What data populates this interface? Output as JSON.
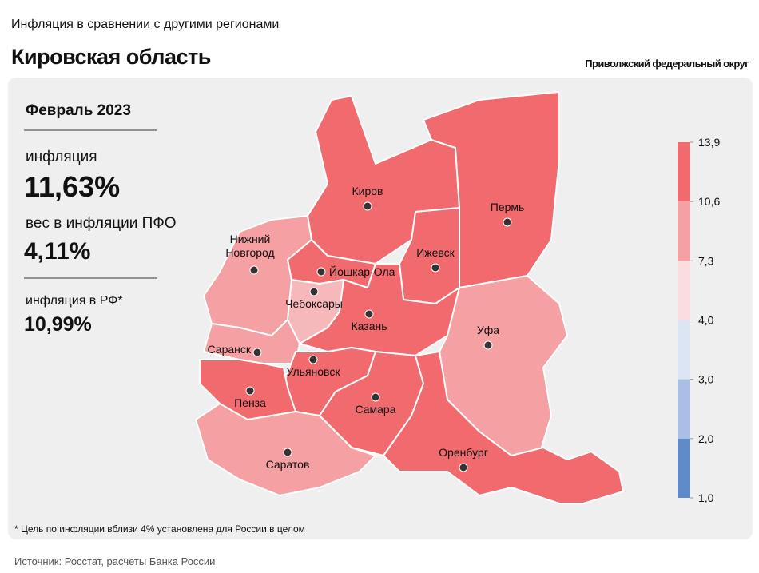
{
  "header": {
    "subtitle": "Инфляция в сравнении с другими регионами",
    "title": "Кировская область",
    "district": "Приволжский федеральный округ"
  },
  "panel": {
    "period": "Февраль 2023",
    "inflation_label": "инфляция",
    "inflation_value": "11,63%",
    "weight_label": "вес в инфляции ПФО",
    "weight_value": "4,11%",
    "rf_label": "инфляция в РФ*",
    "rf_value": "10,99%"
  },
  "map": {
    "cities": [
      {
        "label": "Киров"
      },
      {
        "label": "Пермь"
      },
      {
        "label": "Ижевск"
      },
      {
        "label": "Нижний Новгород"
      },
      {
        "label": "Йошкар-Ола"
      },
      {
        "label": "Чебоксары"
      },
      {
        "label": "Казань"
      },
      {
        "label": "Уфа"
      },
      {
        "label": "Саранск"
      },
      {
        "label": "Ульяновск"
      },
      {
        "label": "Пенза"
      },
      {
        "label": "Самара"
      },
      {
        "label": "Саратов"
      },
      {
        "label": "Оренбург"
      }
    ]
  },
  "legend": {
    "ticks": [
      {
        "value": 13.9,
        "label": "13,9"
      },
      {
        "value": 10.6,
        "label": "10,6"
      },
      {
        "value": 7.3,
        "label": "7,3"
      },
      {
        "value": 4.0,
        "label": "4,0"
      },
      {
        "value": 3.0,
        "label": "3,0"
      },
      {
        "value": 2.0,
        "label": "2,0"
      },
      {
        "value": 1.0,
        "label": "1,0"
      }
    ],
    "colors": [
      "#f06a6e",
      "#f5a0a3",
      "#fbdde0",
      "#dbe5f4",
      "#a9bfe3",
      "#5f8cc8"
    ]
  },
  "footnote": "* Цель по инфляции вблизи 4% установлена для России в целом",
  "source": "Источник: Росстат, расчеты Банка России"
}
